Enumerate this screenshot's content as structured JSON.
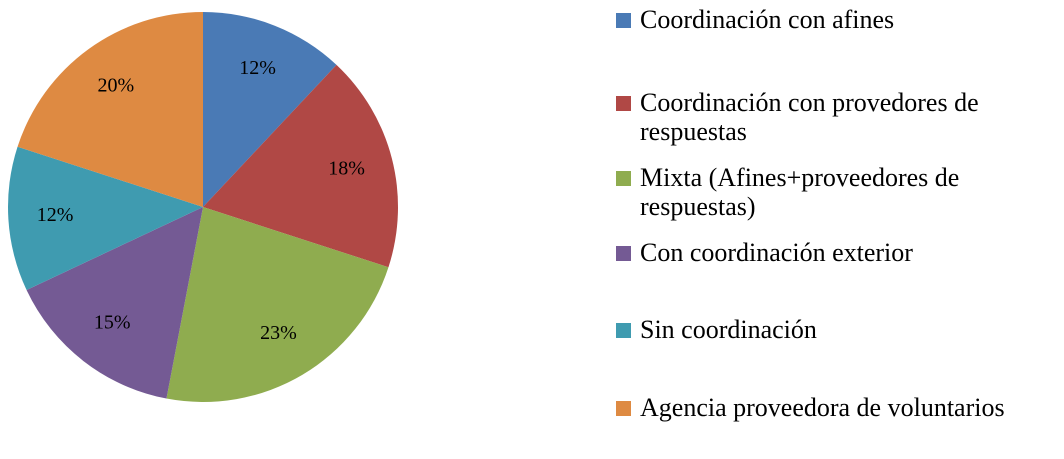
{
  "chart_data": {
    "type": "pie",
    "categories": [
      "Coordinación con afines",
      "Coordinación con provedores de respuestas",
      "Mixta (Afines+proveedores de respuestas)",
      "Con coordinación exterior",
      "Sin coordinación",
      "Agencia proveedora de voluntarios"
    ],
    "values": [
      12,
      18,
      23,
      15,
      12,
      20
    ],
    "value_labels": [
      "12%",
      "18%",
      "23%",
      "15%",
      "12%",
      "20%"
    ],
    "colors": [
      "#4a7ab5",
      "#b04845",
      "#8fac4f",
      "#745a94",
      "#3f9bb0",
      "#de8a42"
    ],
    "legend": "right"
  }
}
